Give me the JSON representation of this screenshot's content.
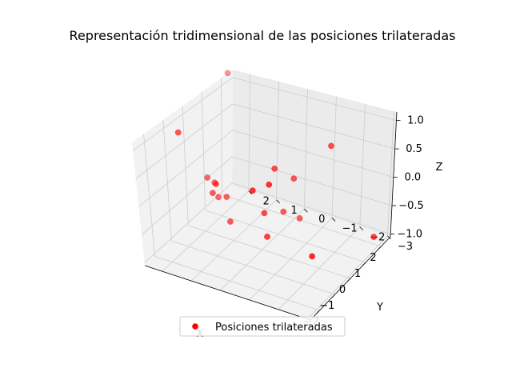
{
  "chart_data": {
    "type": "scatter",
    "projection": "3d",
    "title": "Representación tridimensional de las posiciones trilateradas",
    "xlabel": "X",
    "ylabel": "Y",
    "zlabel": "Z",
    "xlim": [
      -2.6,
      2.6
    ],
    "ylim": [
      -3.1,
      2.6
    ],
    "zlim": [
      -1.05,
      1.15
    ],
    "xticks": [
      -2,
      -1,
      0,
      1,
      2
    ],
    "yticks": [
      -3,
      -2,
      -1,
      0,
      1,
      2
    ],
    "zticks": [
      -1.0,
      -0.5,
      0.0,
      0.5,
      1.0
    ],
    "xtick_labels": [
      "−2",
      "−1",
      "0",
      "1",
      "2"
    ],
    "ytick_labels": [
      "−3",
      "−2",
      "−1",
      "0",
      "1",
      "2"
    ],
    "ztick_labels": [
      "−1.0",
      "−0.5",
      "0.0",
      "0.5",
      "1.0"
    ],
    "grid": true,
    "legend_position": "lower-center",
    "series": [
      {
        "name": "Posiciones trilateradas",
        "color": "#ff0000",
        "x": [
          -1.2,
          -0.95,
          -1.35,
          0.25,
          2.35,
          1.05,
          1.6,
          0.7,
          1.15,
          -0.25,
          0.2,
          0.45,
          1.95,
          -0.6,
          -0.45,
          -0.4,
          -0.4,
          0.0,
          1.7,
          0.35
        ],
        "y": [
          1.97,
          -0.87,
          -0.56,
          -0.33,
          2.61,
          -0.51,
          -1.46,
          2.05,
          -0.09,
          0.95,
          1.98,
          1.77,
          -2.85,
          -2.09,
          -0.45,
          1.3,
          1.43,
          -0.1,
          -0.35,
          1.42
        ],
        "z": [
          1.15,
          0.85,
          0.8,
          0.55,
          1.15,
          0.1,
          0.7,
          -0.35,
          -0.65,
          -0.6,
          -0.1,
          -0.5,
          -0.9,
          -0.55,
          -0.55,
          0.1,
          -0.1,
          -0.3,
          -0.9,
          -0.4
        ]
      }
    ]
  }
}
